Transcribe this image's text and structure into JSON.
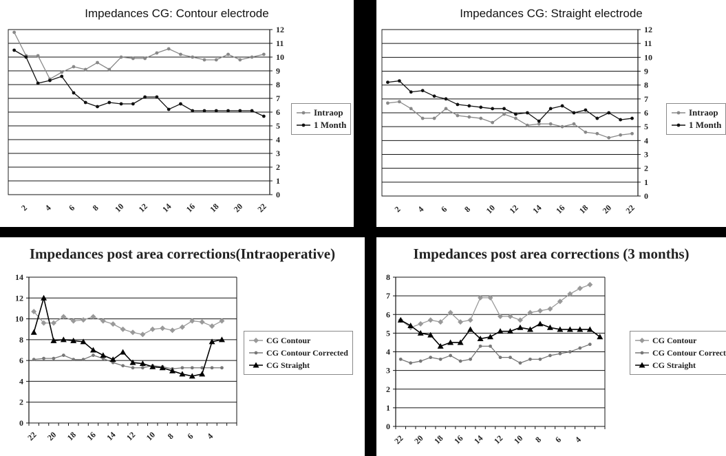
{
  "chart_data": [
    {
      "type": "line",
      "title": "Impedances CG:  Contour electrode",
      "xlabel": "",
      "ylabel": "",
      "x": [
        1,
        2,
        3,
        4,
        5,
        6,
        7,
        8,
        9,
        10,
        11,
        12,
        13,
        14,
        15,
        16,
        17,
        18,
        19,
        20,
        21,
        22
      ],
      "x_tick_labels": [
        "2",
        "4",
        "6",
        "8",
        "10",
        "12",
        "14",
        "16",
        "18",
        "20",
        "22"
      ],
      "ylim": [
        0,
        12
      ],
      "y_axis_position": "right",
      "grid": true,
      "legend_position": "right",
      "series": [
        {
          "name": "Intraop",
          "color": "#888888",
          "marker": "dot",
          "values": [
            11.8,
            10.1,
            10.1,
            8.4,
            8.9,
            9.3,
            9.1,
            9.6,
            9.1,
            10.0,
            9.9,
            9.9,
            10.3,
            10.6,
            10.2,
            10.0,
            9.8,
            9.8,
            10.2,
            9.8,
            10.0,
            10.2
          ]
        },
        {
          "name": "1 Month",
          "color": "#111111",
          "marker": "dot",
          "values": [
            10.5,
            10.0,
            8.1,
            8.3,
            8.6,
            7.4,
            6.7,
            6.4,
            6.7,
            6.6,
            6.6,
            7.1,
            7.1,
            6.2,
            6.6,
            6.1,
            6.1,
            6.1,
            6.1,
            6.1,
            6.1,
            5.7
          ]
        }
      ]
    },
    {
      "type": "line",
      "title": "Impedances CG:  Straight electrode",
      "xlabel": "",
      "ylabel": "",
      "x": [
        1,
        2,
        3,
        4,
        5,
        6,
        7,
        8,
        9,
        10,
        11,
        12,
        13,
        14,
        15,
        16,
        17,
        18,
        19,
        20,
        21,
        22
      ],
      "x_tick_labels": [
        "2",
        "4",
        "6",
        "8",
        "10",
        "12",
        "14",
        "16",
        "18",
        "20",
        "22"
      ],
      "ylim": [
        0,
        12
      ],
      "y_axis_position": "right",
      "grid": true,
      "legend_position": "right",
      "series": [
        {
          "name": "Intraop",
          "color": "#888888",
          "marker": "dot",
          "values": [
            6.7,
            6.8,
            6.3,
            5.6,
            5.6,
            6.3,
            5.8,
            5.7,
            5.6,
            5.3,
            5.9,
            5.6,
            5.1,
            5.2,
            5.2,
            5.0,
            5.2,
            4.6,
            4.5,
            4.2,
            4.4,
            4.5
          ]
        },
        {
          "name": "1 Month",
          "color": "#111111",
          "marker": "dot",
          "values": [
            8.2,
            8.3,
            7.5,
            7.6,
            7.2,
            7.0,
            6.6,
            6.5,
            6.4,
            6.3,
            6.3,
            5.9,
            6.0,
            5.4,
            6.3,
            6.5,
            6.0,
            6.2,
            5.6,
            6.0,
            5.5,
            5.6
          ]
        }
      ]
    },
    {
      "type": "line",
      "title": "Impedances post area corrections(Intraoperative)",
      "xlabel": "",
      "ylabel": "",
      "x": [
        22,
        21,
        20,
        19,
        18,
        17,
        16,
        15,
        14,
        13,
        12,
        11,
        10,
        9,
        8,
        7,
        6,
        5,
        4,
        3,
        2
      ],
      "x_tick_labels": [
        "22",
        "20",
        "18",
        "16",
        "14",
        "12",
        "10",
        "8",
        "6",
        "4"
      ],
      "ylim": [
        0,
        14
      ],
      "y_ticks": [
        0,
        2,
        4,
        6,
        8,
        10,
        12,
        14
      ],
      "grid": true,
      "legend_position": "right",
      "series": [
        {
          "name": "CG Contour",
          "color": "#999999",
          "marker": "diamond",
          "values": [
            10.7,
            9.6,
            9.6,
            10.2,
            9.8,
            9.9,
            10.2,
            9.8,
            9.5,
            9.0,
            8.7,
            8.5,
            9.0,
            9.1,
            8.9,
            9.2,
            9.8,
            9.7,
            9.3,
            9.8,
            null
          ]
        },
        {
          "name": "CG Contour Corrected",
          "color": "#777777",
          "marker": "dot",
          "values": [
            6.1,
            6.2,
            6.2,
            6.5,
            6.1,
            6.1,
            6.5,
            6.2,
            5.8,
            5.5,
            5.3,
            5.3,
            5.5,
            5.4,
            5.2,
            5.3,
            5.3,
            5.3,
            5.3,
            5.3,
            null
          ]
        },
        {
          "name": "CG Straight",
          "color": "#000000",
          "marker": "triangle",
          "values": [
            8.7,
            12.0,
            7.9,
            8.0,
            7.9,
            7.8,
            7.0,
            6.5,
            6.1,
            6.8,
            5.8,
            5.7,
            5.4,
            5.3,
            5.0,
            4.7,
            4.5,
            4.7,
            7.8,
            8.0,
            null
          ]
        }
      ]
    },
    {
      "type": "line",
      "title": "Impedances post area corrections (3 months)",
      "xlabel": "",
      "ylabel": "",
      "x": [
        22,
        21,
        20,
        19,
        18,
        17,
        16,
        15,
        14,
        13,
        12,
        11,
        10,
        9,
        8,
        7,
        6,
        5,
        4,
        3,
        2
      ],
      "x_tick_labels": [
        "22",
        "20",
        "18",
        "16",
        "14",
        "12",
        "10",
        "8",
        "6",
        "4"
      ],
      "ylim": [
        0,
        8
      ],
      "y_ticks": [
        0,
        1,
        2,
        3,
        4,
        5,
        6,
        7,
        8
      ],
      "grid": true,
      "legend_position": "right",
      "series": [
        {
          "name": "CG Contour",
          "color": "#999999",
          "marker": "diamond",
          "values": [
            5.7,
            5.3,
            5.5,
            5.7,
            5.6,
            6.1,
            5.6,
            5.7,
            6.9,
            6.9,
            5.9,
            5.9,
            5.7,
            6.1,
            6.2,
            6.3,
            6.7,
            7.1,
            7.4,
            7.6,
            null
          ]
        },
        {
          "name": "CG Contour Corrected",
          "color": "#777777",
          "marker": "dot",
          "values": [
            3.6,
            3.4,
            3.5,
            3.7,
            3.6,
            3.8,
            3.5,
            3.6,
            4.3,
            4.3,
            3.7,
            3.7,
            3.4,
            3.6,
            3.6,
            3.8,
            3.9,
            4.0,
            4.2,
            4.4,
            null
          ]
        },
        {
          "name": "CG Straight",
          "color": "#000000",
          "marker": "triangle",
          "values": [
            5.7,
            5.4,
            5.0,
            4.9,
            4.3,
            4.5,
            4.5,
            5.2,
            4.7,
            4.8,
            5.1,
            5.1,
            5.3,
            5.2,
            5.5,
            5.3,
            5.2,
            5.2,
            5.2,
            5.2,
            4.8
          ]
        }
      ]
    }
  ]
}
